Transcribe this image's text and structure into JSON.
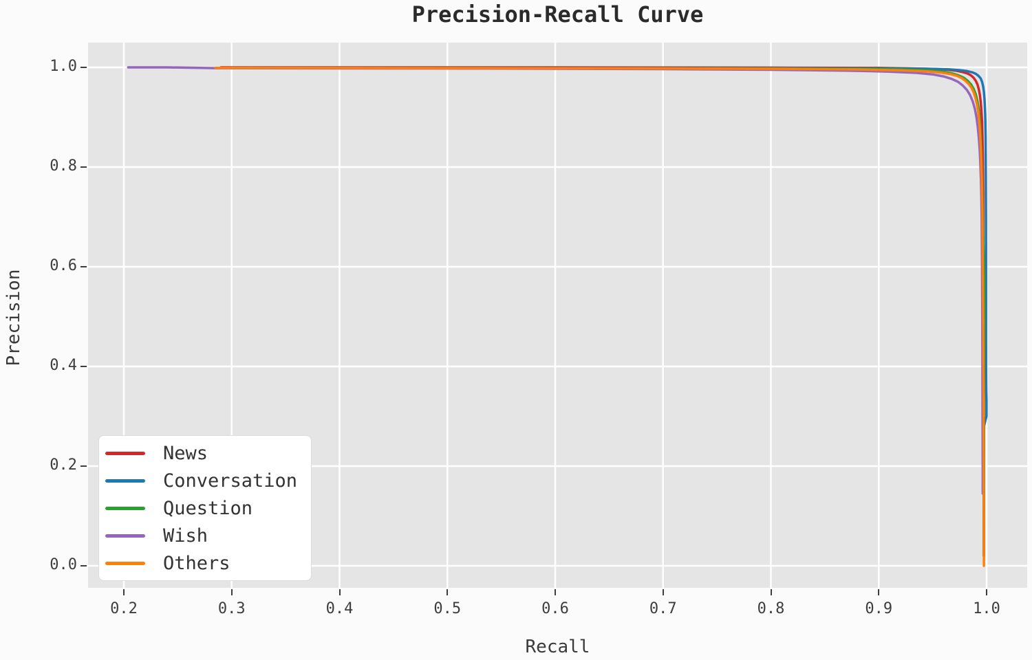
{
  "figure": {
    "background": "#fbfbfb",
    "plot_background": "#e5e5e5",
    "grid_color": "#ffffff",
    "tick_color": "#3d3d3d",
    "title_color": "#2b2b2b"
  },
  "chart_data": {
    "type": "line",
    "title": "Precision-Recall Curve",
    "xlabel": "Recall",
    "ylabel": "Precision",
    "xlim": [
      0.1735,
      1.0376
    ],
    "ylim": [
      -0.0441,
      1.0497
    ],
    "grid": true,
    "legend_position": "lower left",
    "xticks": [
      0.2,
      0.3,
      0.4,
      0.5,
      0.6,
      0.7,
      0.8,
      0.9,
      1.0
    ],
    "xtick_labels": [
      "0.2",
      "0.3",
      "0.4",
      "0.5",
      "0.6",
      "0.7",
      "0.8",
      "0.9",
      "1.0"
    ],
    "yticks": [
      0.0,
      0.2,
      0.4,
      0.6,
      0.8,
      1.0
    ],
    "ytick_labels": [
      "0.0",
      "0.2",
      "0.4",
      "0.6",
      "0.8",
      "1.0"
    ],
    "series": [
      {
        "name": "News",
        "color": "#d62728",
        "points": [
          [
            0.29,
            1.0
          ],
          [
            0.6,
            1.0
          ],
          [
            0.8,
            0.9995
          ],
          [
            0.9,
            0.999
          ],
          [
            0.93,
            0.998
          ],
          [
            0.95,
            0.997
          ],
          [
            0.962,
            0.9955
          ],
          [
            0.971,
            0.9935
          ],
          [
            0.977,
            0.991
          ],
          [
            0.982,
            0.988
          ],
          [
            0.9855,
            0.984
          ],
          [
            0.988,
            0.979
          ],
          [
            0.99,
            0.973
          ],
          [
            0.9915,
            0.966
          ],
          [
            0.9928,
            0.956
          ],
          [
            0.9938,
            0.944
          ],
          [
            0.9946,
            0.93
          ],
          [
            0.9952,
            0.912
          ],
          [
            0.9958,
            0.89
          ],
          [
            0.9962,
            0.86
          ],
          [
            0.9965,
            0.82
          ],
          [
            0.9968,
            0.75
          ],
          [
            0.997,
            0.6
          ],
          [
            0.9972,
            0.4
          ],
          [
            0.9973,
            0.2
          ],
          [
            0.9974,
            0.02
          ]
        ]
      },
      {
        "name": "Conversation",
        "color": "#1f77b4",
        "points": [
          [
            0.3,
            0.9993
          ],
          [
            0.6,
            0.9988
          ],
          [
            0.8,
            0.9985
          ],
          [
            0.9,
            0.998
          ],
          [
            0.93,
            0.9975
          ],
          [
            0.95,
            0.997
          ],
          [
            0.965,
            0.996
          ],
          [
            0.975,
            0.9945
          ],
          [
            0.982,
            0.9925
          ],
          [
            0.987,
            0.99
          ],
          [
            0.99,
            0.987
          ],
          [
            0.9925,
            0.983
          ],
          [
            0.9945,
            0.978
          ],
          [
            0.9958,
            0.971
          ],
          [
            0.9968,
            0.962
          ],
          [
            0.9975,
            0.951
          ],
          [
            0.998,
            0.938
          ],
          [
            0.9984,
            0.922
          ],
          [
            0.9987,
            0.905
          ],
          [
            0.9989,
            0.885
          ],
          [
            0.9991,
            0.86
          ],
          [
            0.9992,
            0.83
          ],
          [
            0.9993,
            0.78
          ],
          [
            0.9994,
            0.7
          ],
          [
            0.9995,
            0.55
          ],
          [
            0.9995,
            0.4
          ],
          [
            0.9996,
            0.355
          ],
          [
            0.9999,
            0.33
          ],
          [
            0.9999,
            0.3
          ],
          [
            0.9976,
            0.28
          ],
          [
            0.9975,
            0.02
          ]
        ]
      },
      {
        "name": "Question",
        "color": "#2ca02c",
        "points": [
          [
            0.285,
            0.9988
          ],
          [
            0.6,
            0.9985
          ],
          [
            0.8,
            0.998
          ],
          [
            0.9,
            0.997
          ],
          [
            0.93,
            0.9955
          ],
          [
            0.95,
            0.9935
          ],
          [
            0.96,
            0.991
          ],
          [
            0.968,
            0.988
          ],
          [
            0.974,
            0.984
          ],
          [
            0.979,
            0.979
          ],
          [
            0.9825,
            0.973
          ],
          [
            0.9855,
            0.966
          ],
          [
            0.988,
            0.957
          ],
          [
            0.99,
            0.946
          ],
          [
            0.9915,
            0.932
          ],
          [
            0.9927,
            0.915
          ],
          [
            0.9937,
            0.895
          ],
          [
            0.9944,
            0.87
          ],
          [
            0.995,
            0.84
          ],
          [
            0.9955,
            0.8
          ],
          [
            0.9961,
            0.74
          ],
          [
            0.9967,
            0.67
          ],
          [
            0.9973,
            0.62
          ],
          [
            0.9978,
            0.58
          ],
          [
            0.9978,
            0.45
          ],
          [
            0.9975,
            0.4
          ],
          [
            0.9975,
            0.02
          ]
        ]
      },
      {
        "name": "Wish",
        "color": "#9467bd",
        "points": [
          [
            0.204,
            1.0
          ],
          [
            0.24,
            1.0
          ],
          [
            0.285,
            0.9985
          ],
          [
            0.4,
            0.998
          ],
          [
            0.55,
            0.9975
          ],
          [
            0.7,
            0.9965
          ],
          [
            0.8,
            0.9952
          ],
          [
            0.87,
            0.9935
          ],
          [
            0.91,
            0.9915
          ],
          [
            0.935,
            0.989
          ],
          [
            0.95,
            0.986
          ],
          [
            0.96,
            0.982
          ],
          [
            0.9675,
            0.977
          ],
          [
            0.9735,
            0.971
          ],
          [
            0.978,
            0.9635
          ],
          [
            0.9818,
            0.9545
          ],
          [
            0.9848,
            0.944
          ],
          [
            0.9872,
            0.9315
          ],
          [
            0.9891,
            0.917
          ],
          [
            0.9906,
            0.9
          ],
          [
            0.9918,
            0.881
          ],
          [
            0.9928,
            0.859
          ],
          [
            0.9936,
            0.835
          ],
          [
            0.9942,
            0.808
          ],
          [
            0.9947,
            0.778
          ],
          [
            0.9951,
            0.745
          ],
          [
            0.9954,
            0.705
          ],
          [
            0.9956,
            0.655
          ],
          [
            0.9958,
            0.6
          ],
          [
            0.996,
            0.52
          ],
          [
            0.9961,
            0.44
          ],
          [
            0.9962,
            0.36
          ],
          [
            0.9963,
            0.27
          ],
          [
            0.9964,
            0.19
          ],
          [
            0.9964,
            0.145
          ]
        ]
      },
      {
        "name": "Others",
        "color": "#ff7f0e",
        "points": [
          [
            0.285,
            0.999
          ],
          [
            0.5,
            0.9985
          ],
          [
            0.7,
            0.998
          ],
          [
            0.82,
            0.997
          ],
          [
            0.88,
            0.9958
          ],
          [
            0.92,
            0.9942
          ],
          [
            0.945,
            0.992
          ],
          [
            0.958,
            0.9895
          ],
          [
            0.9665,
            0.9865
          ],
          [
            0.9725,
            0.983
          ],
          [
            0.977,
            0.9785
          ],
          [
            0.9805,
            0.973
          ],
          [
            0.9835,
            0.9665
          ],
          [
            0.986,
            0.959
          ],
          [
            0.988,
            0.95
          ],
          [
            0.9896,
            0.9395
          ],
          [
            0.9909,
            0.9275
          ],
          [
            0.992,
            0.9135
          ],
          [
            0.9929,
            0.8975
          ],
          [
            0.9936,
            0.879
          ],
          [
            0.9942,
            0.8585
          ],
          [
            0.9947,
            0.8355
          ],
          [
            0.9951,
            0.81
          ],
          [
            0.9955,
            0.78
          ],
          [
            0.9958,
            0.745
          ],
          [
            0.9961,
            0.705
          ],
          [
            0.9963,
            0.66
          ],
          [
            0.9965,
            0.61
          ],
          [
            0.9967,
            0.555
          ],
          [
            0.9969,
            0.495
          ],
          [
            0.997,
            0.43
          ],
          [
            0.9971,
            0.36
          ],
          [
            0.9972,
            0.29
          ],
          [
            0.9973,
            0.22
          ],
          [
            0.9974,
            0.15
          ],
          [
            0.9975,
            0.08
          ],
          [
            0.9975,
            0.0
          ]
        ]
      }
    ]
  }
}
